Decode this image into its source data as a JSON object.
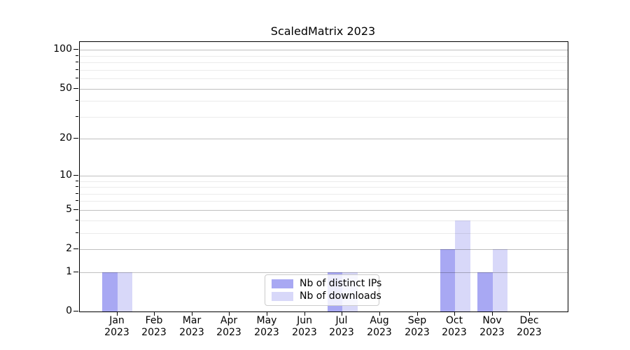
{
  "chart_data": {
    "type": "bar",
    "title": "ScaledMatrix 2023",
    "categories": [
      "Jan",
      "Feb",
      "Mar",
      "Apr",
      "May",
      "Jun",
      "Jul",
      "Aug",
      "Sep",
      "Oct",
      "Nov",
      "Dec"
    ],
    "year_label": "2023",
    "series": [
      {
        "name": "Nb of distinct IPs",
        "color": "#a8a8f3",
        "values": [
          1,
          0,
          0,
          0,
          0,
          0,
          1,
          0,
          0,
          2,
          1,
          0
        ]
      },
      {
        "name": "Nb of downloads",
        "color": "#d8d8f9",
        "values": [
          1,
          0,
          0,
          0,
          0,
          0,
          1,
          0,
          0,
          4,
          2,
          0
        ]
      }
    ],
    "yscale": "log1p",
    "yticks": [
      0,
      1,
      2,
      5,
      10,
      20,
      50,
      100
    ],
    "minor_yticks": [
      3,
      4,
      6,
      7,
      8,
      9,
      30,
      40,
      60,
      70,
      80,
      90
    ],
    "ylim": [
      0,
      115
    ],
    "xlabel": "",
    "ylabel": "",
    "grid": "horizontal",
    "legend_position": "lower center",
    "background": "#ffffff"
  }
}
